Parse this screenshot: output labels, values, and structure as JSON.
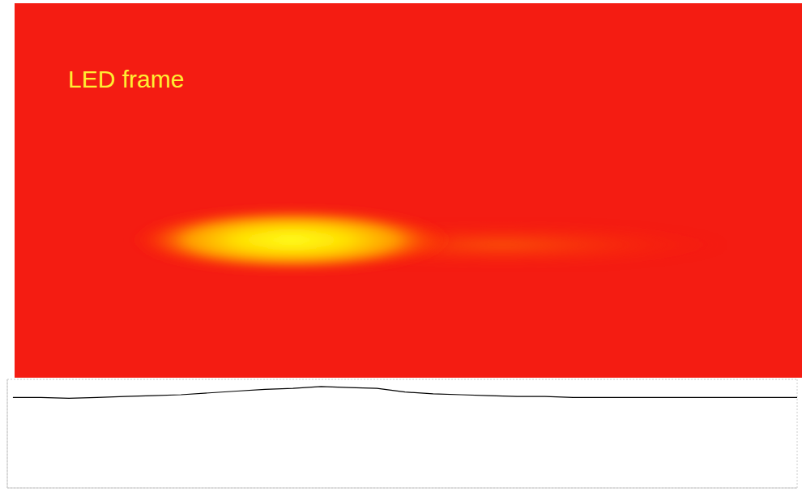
{
  "chart_data": {
    "type": "line",
    "title": "LED frame",
    "x": [
      0.7,
      0.8,
      0.9,
      1.0,
      1.1,
      1.2,
      1.3,
      1.4,
      1.5,
      1.6,
      1.7,
      1.8,
      1.9,
      2.0,
      2.1,
      2.2,
      2.3,
      2.4,
      2.5,
      2.6,
      2.7,
      2.8,
      2.9,
      3.0,
      3.1,
      3.2,
      3.3,
      3.4,
      3.5
    ],
    "values": [
      10.0,
      10.0,
      9.9,
      10.0,
      10.1,
      10.2,
      10.3,
      10.5,
      10.7,
      10.9,
      11.0,
      11.2,
      11.1,
      11.0,
      10.6,
      10.4,
      10.3,
      10.2,
      10.1,
      10.1,
      10.0,
      10.0,
      10.0,
      10.0,
      10.0,
      10.0,
      10.0,
      10.0,
      10.0
    ],
    "color": "#000000",
    "xlim": [
      0.68,
      3.5
    ],
    "xticks": [
      1,
      2,
      3
    ],
    "ylim": [
      0,
      12
    ],
    "yticks": [
      0,
      1,
      2,
      3,
      4,
      5,
      6,
      7,
      8,
      9,
      10,
      11,
      12
    ],
    "grid": true,
    "tick_labels": false
  }
}
